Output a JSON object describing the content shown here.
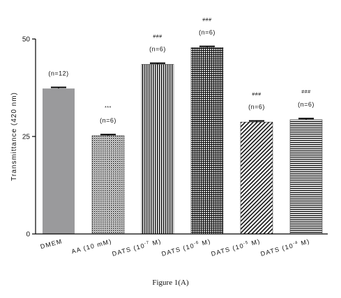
{
  "chart_data": {
    "type": "bar",
    "ylabel": "Transmittance (420 nm)",
    "ylim": [
      0,
      50
    ],
    "yticks": [
      0,
      25,
      50
    ],
    "categories": [
      {
        "base": "DMEM",
        "sup": "",
        "tail": ""
      },
      {
        "base": "AA (10 mM)",
        "sup": "",
        "tail": ""
      },
      {
        "base": "DATS (10",
        "sup": "-7",
        "tail": "M)"
      },
      {
        "base": "DATS (10",
        "sup": "-6",
        "tail": "M)"
      },
      {
        "base": "DATS (10",
        "sup": "-5",
        "tail": "M)"
      },
      {
        "base": "DATS (10",
        "sup": "-4",
        "tail": "M)"
      }
    ],
    "values": [
      37.3,
      25.2,
      43.5,
      47.8,
      28.7,
      29.3
    ],
    "errors": [
      0.3,
      0.3,
      0.3,
      0.3,
      0.3,
      0.3
    ],
    "n_labels": [
      "(n=12)",
      "(n=6)",
      "(n=6)",
      "(n=6)",
      "(n=6)",
      "(n=6)"
    ],
    "sig_labels": [
      "",
      "***",
      "###",
      "###",
      "###",
      "###"
    ],
    "patterns": [
      "solid-gray",
      "dots",
      "vertical-lines",
      "grid",
      "diagonal-lines",
      "horizontal-lines"
    ],
    "colors": {
      "bar_fill": "#9a9a9c",
      "pattern_ink": "#111111",
      "axis": "#000000"
    }
  },
  "caption": "Figure 1(A)"
}
